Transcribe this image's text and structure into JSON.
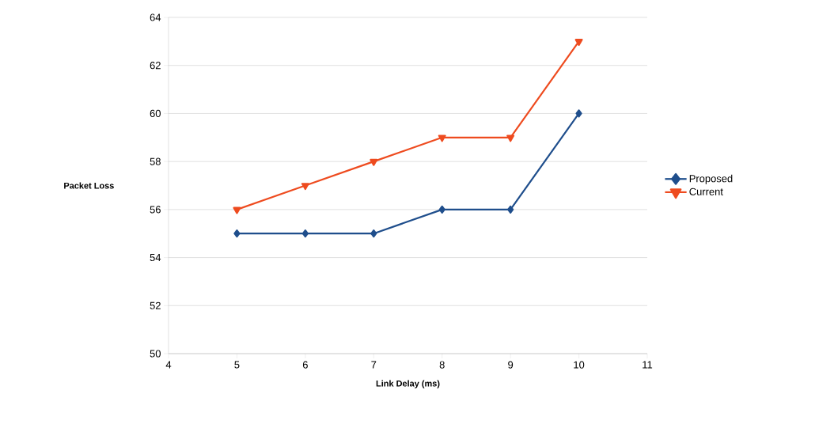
{
  "chart_data": {
    "type": "line",
    "xlabel": "Link Delay (ms)",
    "ylabel": "Packet Loss",
    "x": [
      5,
      6,
      7,
      8,
      9,
      10
    ],
    "series": [
      {
        "name": "Proposed",
        "color": "#1f4e8c",
        "marker": "diamond",
        "values": [
          55,
          55,
          55,
          56,
          56,
          60
        ]
      },
      {
        "name": "Current",
        "color": "#ee4b1f",
        "marker": "triangle",
        "values": [
          56,
          57,
          58,
          59,
          59,
          63
        ]
      }
    ],
    "xlim": [
      4,
      11
    ],
    "ylim": [
      50,
      64
    ],
    "xticks": [
      4,
      5,
      6,
      7,
      8,
      9,
      10,
      11
    ],
    "yticks": [
      50,
      52,
      54,
      56,
      58,
      60,
      62,
      64
    ],
    "grid": "y",
    "legend": "right"
  }
}
